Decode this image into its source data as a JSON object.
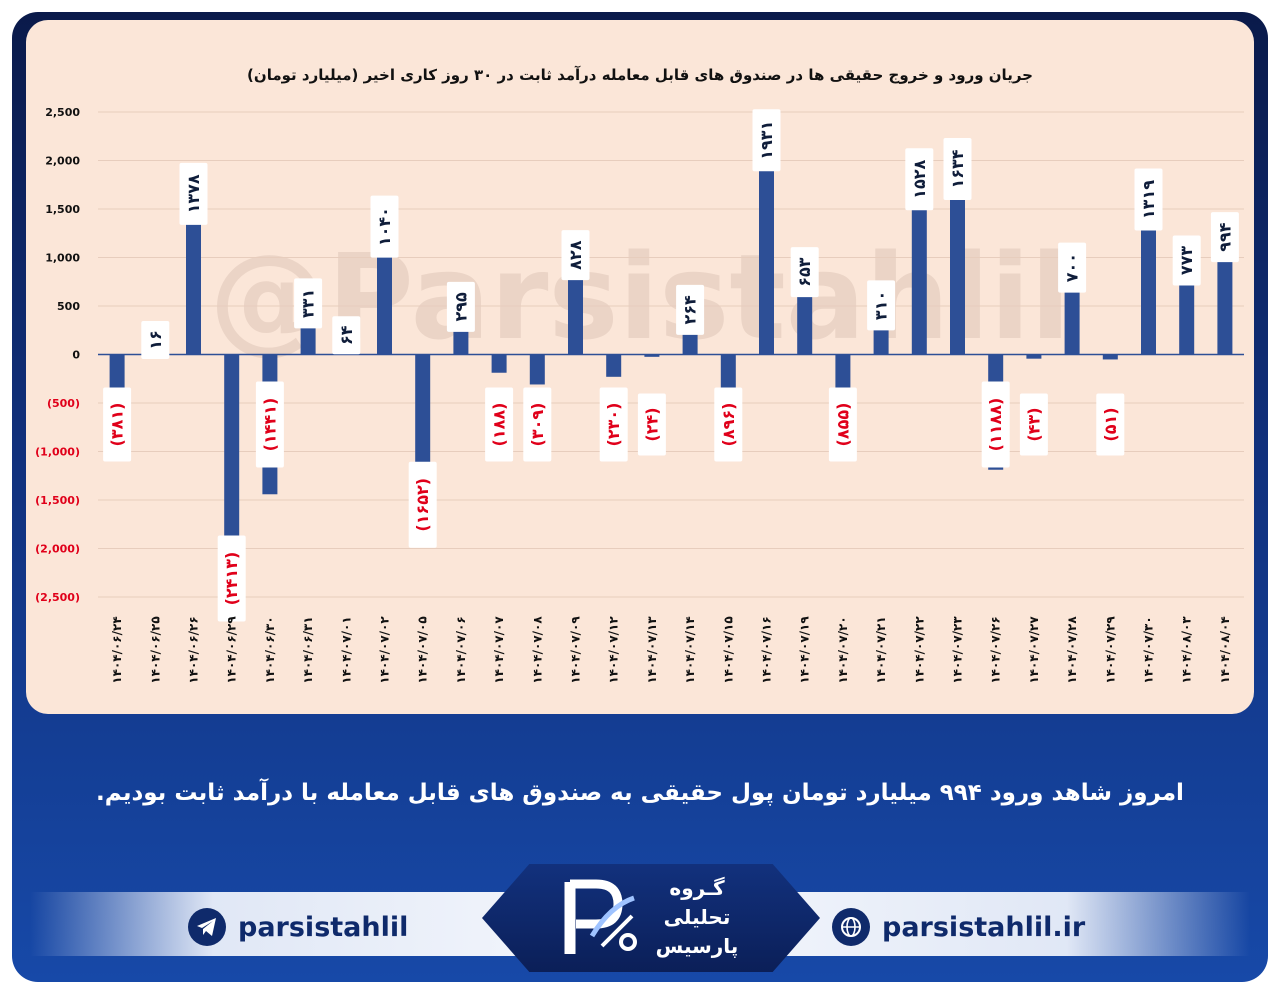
{
  "chart_data": {
    "type": "bar",
    "title": "جریان ورود و خروج حقیقی ها در صندوق های قابل معامله درآمد ثابت در ۳۰ روز کاری اخیر (میلیارد تومان)",
    "watermark": "@Parsistahlil",
    "ylim": [
      -2500,
      2500
    ],
    "yticks": [
      2500,
      2000,
      1500,
      1000,
      500,
      0,
      -500,
      -1000,
      -1500,
      -2000,
      -2500
    ],
    "ytick_labels": [
      "2,500",
      "2,000",
      "1,500",
      "1,000",
      "500",
      "0",
      "(500)",
      "(1,000)",
      "(1,500)",
      "(2,000)",
      "(2,500)"
    ],
    "grid": true,
    "categories": [
      "۱۴۰۴/۰۶/۲۴",
      "۱۴۰۴/۰۶/۲۵",
      "۱۴۰۴/۰۶/۲۶",
      "۱۴۰۴/۰۶/۲۹",
      "۱۴۰۴/۰۶/۳۰",
      "۱۴۰۴/۰۶/۳۱",
      "۱۴۰۴/۰۷/۰۱",
      "۱۴۰۴/۰۷/۰۲",
      "۱۴۰۴/۰۷/۰۵",
      "۱۴۰۴/۰۷/۰۶",
      "۱۴۰۴/۰۷/۰۷",
      "۱۴۰۴/۰۷/۰۸",
      "۱۴۰۴/۰۷/۰۹",
      "۱۴۰۴/۰۷/۱۲",
      "۱۴۰۴/۰۷/۱۳",
      "۱۴۰۴/۰۷/۱۴",
      "۱۴۰۴/۰۷/۱۵",
      "۱۴۰۴/۰۷/۱۶",
      "۱۴۰۴/۰۷/۱۹",
      "۱۴۰۴/۰۷/۲۰",
      "۱۴۰۴/۰۷/۲۱",
      "۱۴۰۴/۰۷/۲۲",
      "۱۴۰۴/۰۷/۲۳",
      "۱۴۰۴/۰۷/۲۶",
      "۱۴۰۴/۰۷/۲۷",
      "۱۴۰۴/۰۷/۲۸",
      "۱۴۰۴/۰۷/۲۹",
      "۱۴۰۴/۰۷/۳۰",
      "۱۴۰۴/۰۸/۰۳",
      "۱۴۰۴/۰۸/۰۴"
    ],
    "values": [
      -381,
      16,
      1378,
      -2413,
      -1441,
      331,
      64,
      1040,
      -1652,
      295,
      -188,
      -309,
      828,
      -230,
      -24,
      264,
      -896,
      1931,
      653,
      -855,
      310,
      1528,
      1634,
      -1188,
      -43,
      700,
      -51,
      1319,
      773,
      994
    ],
    "data_labels": [
      "(۳۸۱)",
      "۱۶",
      "۱۳۷۸",
      "(۲۴۱۳)",
      "(۱۴۴۱)",
      "۳۳۱",
      "۶۴",
      "۱۰۴۰",
      "(۱۶۵۲)",
      "۲۹۵",
      "(۱۸۸)",
      "(۳۰۹)",
      "۸۲۸",
      "(۲۳۰)",
      "(۲۴)",
      "۲۶۴",
      "(۸۹۶)",
      "۱۹۳۱",
      "۶۵۳",
      "(۸۵۵)",
      "۳۱۰",
      "۱۵۲۸",
      "۱۶۳۴",
      "(۱۱۸۸)",
      "(۴۳)",
      "۷۰۰",
      "(۵۱)",
      "۱۳۱۹",
      "۷۷۳",
      "۹۹۴"
    ],
    "colors": {
      "bar": "#2d4f96",
      "positive_label": "#0f1d3a",
      "negative_label": "#e0001a",
      "label_box": "#ffffff"
    }
  },
  "caption": "امروز شاهد ورود ۹۹۴ میلیارد تومان پول حقیقی به صندوق های قابل معامله با درآمد ثابت بودیم.",
  "footer": {
    "telegram_handle": "parsistahlil",
    "website": "parsistahlil.ir",
    "logo_lines": [
      "گـروه",
      "تحلیلی",
      "پارسیس"
    ]
  }
}
